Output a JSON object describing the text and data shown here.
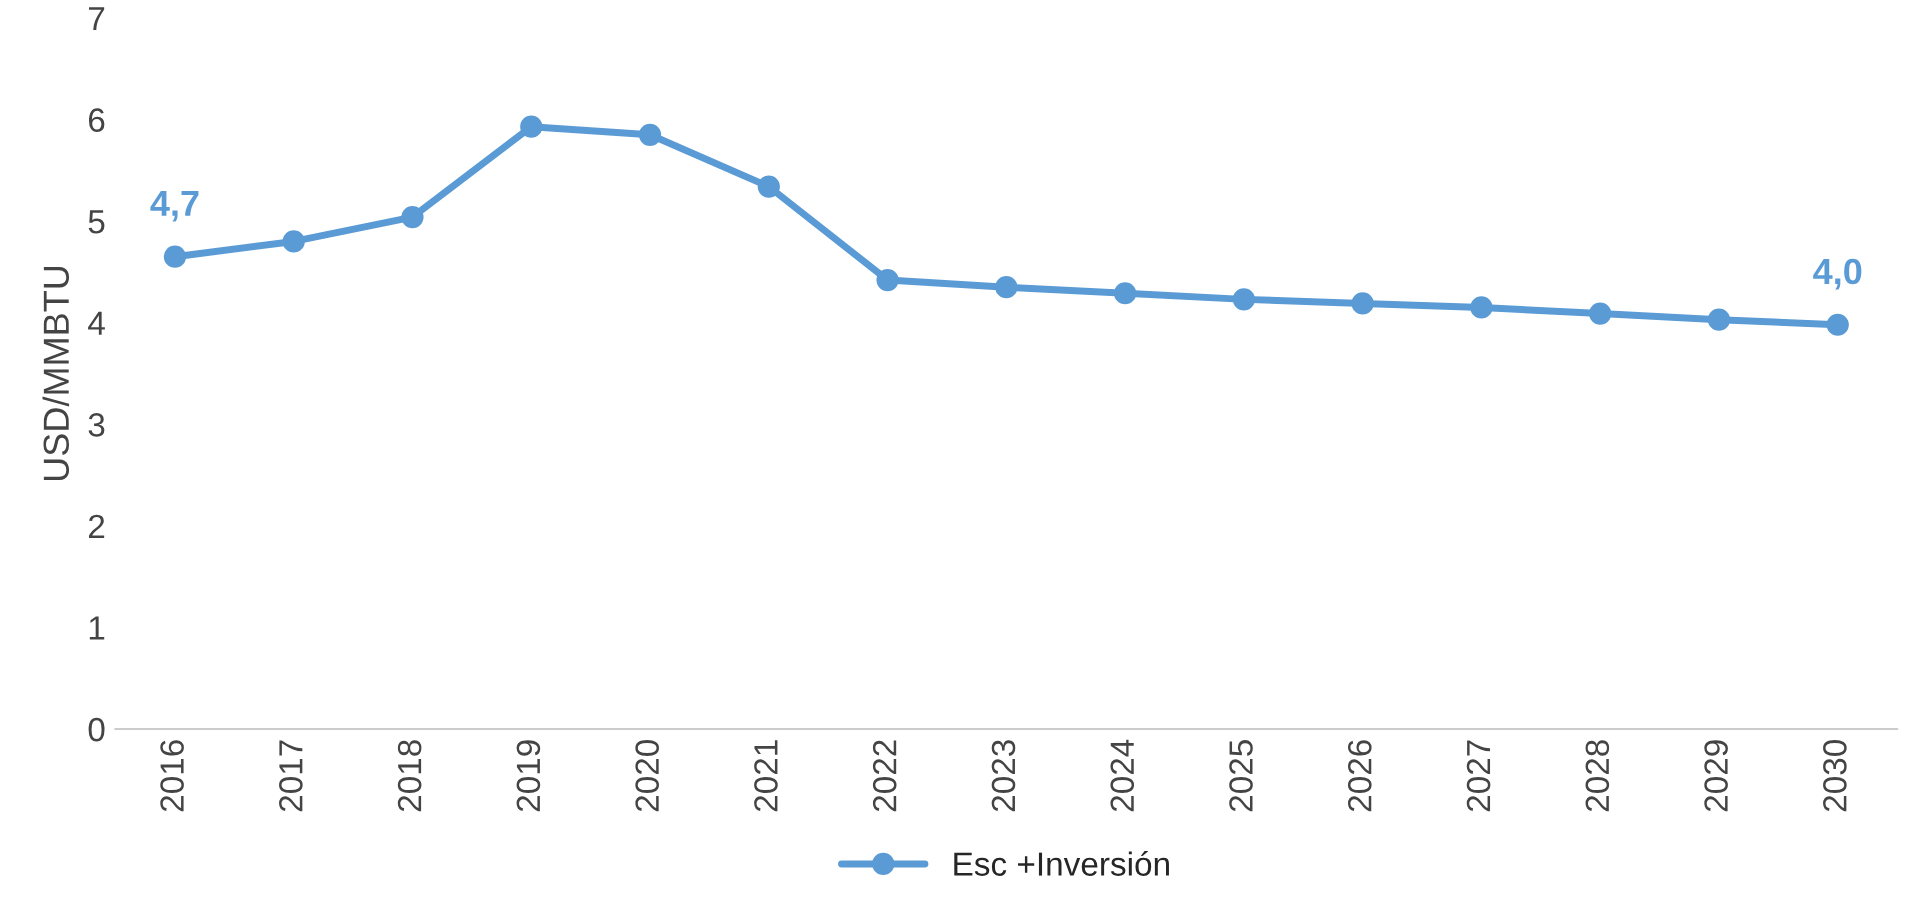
{
  "chart_data": {
    "type": "line",
    "ylabel": "USD/MMBTU",
    "categories": [
      "2016",
      "2017",
      "2018",
      "2019",
      "2020",
      "2021",
      "2022",
      "2023",
      "2024",
      "2025",
      "2026",
      "2027",
      "2028",
      "2029",
      "2030"
    ],
    "series": [
      {
        "name": "Esc +Inversión",
        "color": "#5b9bd5",
        "values": [
          4.65,
          4.8,
          5.04,
          5.93,
          5.85,
          5.34,
          4.42,
          4.35,
          4.29,
          4.23,
          4.19,
          4.15,
          4.09,
          4.03,
          3.98
        ],
        "value_labels": [
          "4,7",
          null,
          null,
          null,
          null,
          null,
          null,
          null,
          null,
          null,
          null,
          null,
          null,
          null,
          "4,0"
        ]
      }
    ],
    "ylim": [
      0,
      7
    ],
    "yticks": [
      0,
      1,
      2,
      3,
      4,
      5,
      6,
      7
    ],
    "grid": false,
    "legend": "bottom",
    "marker": "circle",
    "line_style": "solid"
  }
}
